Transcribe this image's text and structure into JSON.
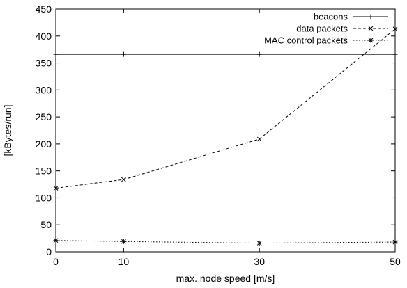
{
  "chart_data": {
    "type": "line",
    "title": "",
    "xlabel": "max. node speed [m/s]",
    "ylabel": "[kBytes/run]",
    "xlim": [
      0,
      50
    ],
    "ylim": [
      0,
      450
    ],
    "x_ticks": [
      0,
      10,
      30,
      50
    ],
    "y_ticks": [
      0,
      50,
      100,
      150,
      200,
      250,
      300,
      350,
      400,
      450
    ],
    "x_scale": "categorical-spaced",
    "grid": false,
    "legend_position": "top-right",
    "series": [
      {
        "name": "beacons",
        "line_style": "solid",
        "marker": "plus",
        "x": [
          0,
          10,
          30,
          50
        ],
        "values": [
          366,
          366,
          366,
          366
        ]
      },
      {
        "name": "data packets",
        "line_style": "dashed",
        "marker": "cross",
        "x": [
          0,
          10,
          30,
          50
        ],
        "values": [
          118,
          134,
          209,
          413
        ]
      },
      {
        "name": "MAC control packets",
        "line_style": "dotted",
        "marker": "asterisk",
        "x": [
          0,
          10,
          30,
          50
        ],
        "values": [
          21,
          19,
          16,
          18
        ]
      }
    ]
  }
}
